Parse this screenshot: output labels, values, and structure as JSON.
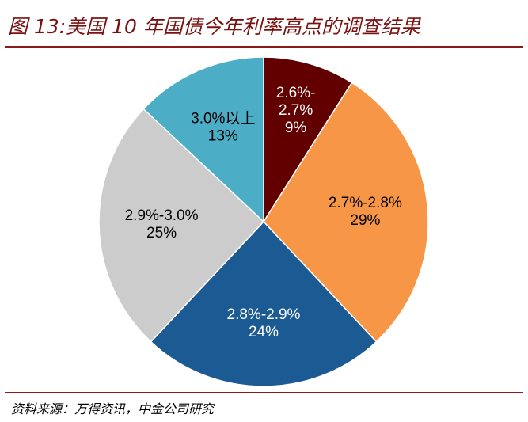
{
  "header": {
    "title": "图 13:美国 10 年国债今年利率高点的调查结果"
  },
  "footer": {
    "source": "资料来源：万得资讯，中金公司研究"
  },
  "chart_data": {
    "type": "pie",
    "title": "图 13:美国 10 年国债今年利率高点的调查结果",
    "start_angle_deg": 0,
    "direction": "clockwise",
    "slices": [
      {
        "label_lines": [
          "2.6%-",
          "2.7%"
        ],
        "pct_label": "9%",
        "value": 9,
        "color": "#620000",
        "text_color": "#ffffff"
      },
      {
        "label_lines": [
          "2.7%-2.8%"
        ],
        "pct_label": "29%",
        "value": 29,
        "color": "#f79646",
        "text_color": "#000000"
      },
      {
        "label_lines": [
          "2.8%-2.9%"
        ],
        "pct_label": "24%",
        "value": 24,
        "color": "#1b5a92",
        "text_color": "#ffffff"
      },
      {
        "label_lines": [
          "2.9%-3.0%"
        ],
        "pct_label": "25%",
        "value": 25,
        "color": "#cccccc",
        "text_color": "#000000"
      },
      {
        "label_lines": [
          "3.0%以上"
        ],
        "pct_label": "13%",
        "value": 13,
        "color": "#4badc6",
        "text_color": "#000000"
      }
    ]
  }
}
